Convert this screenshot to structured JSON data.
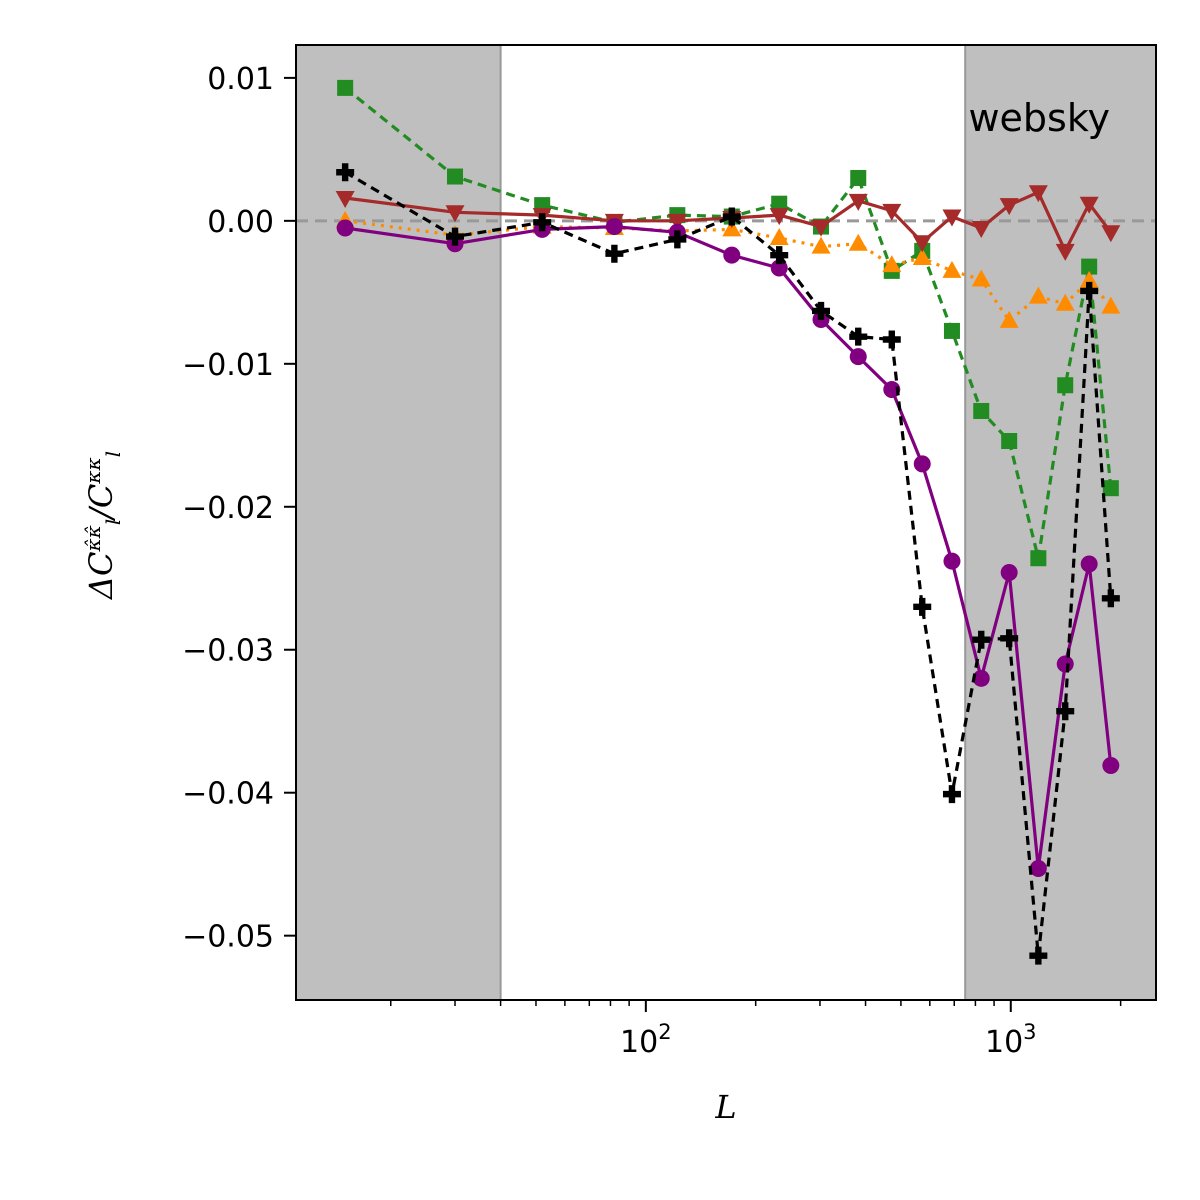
{
  "chart_data": {
    "type": "line",
    "xscale": "log",
    "xlim": [
      11,
      2500
    ],
    "ylim": [
      -0.0545,
      0.0123
    ],
    "xlabel": "L",
    "ylabel_parts": {
      "delta": "ΔC",
      "sup": "κ̂κ̂",
      "sub": "l",
      "slash": "/C",
      "sup2": "κκ",
      "sub2": "l"
    },
    "annotation": "websky",
    "x_tick_labels": [
      {
        "value": 100,
        "base": "10",
        "exp": "2"
      },
      {
        "value": 1000,
        "base": "10",
        "exp": "3"
      }
    ],
    "y_ticks": [
      0.01,
      0.0,
      -0.01,
      -0.02,
      -0.03,
      -0.04,
      -0.05
    ],
    "y_tick_labels": [
      "0.01",
      "0.00",
      "−0.01",
      "−0.02",
      "−0.03",
      "−0.04",
      "−0.05"
    ],
    "shaded_regions": [
      [
        11,
        40
      ],
      [
        750,
        2500
      ]
    ],
    "reference_line": 0,
    "x": [
      15,
      30,
      52,
      82,
      122,
      172,
      232,
      302,
      382,
      472,
      572,
      690,
      830,
      990,
      1190,
      1410,
      1640,
      1880
    ],
    "series": [
      {
        "color": "#228b22",
        "dash": "9,6",
        "marker": "square",
        "values": [
          0.0093,
          0.0031,
          0.0011,
          -0.0001,
          0.0004,
          0.0003,
          0.0012,
          -0.0004,
          0.003,
          -0.0035,
          -0.0021,
          -0.0077,
          -0.0133,
          -0.0154,
          -0.0236,
          -0.0115,
          -0.0032,
          -0.0187
        ]
      },
      {
        "color": "#ff8c00",
        "dash": "3,6",
        "marker": "triangle-up",
        "values": [
          0.0,
          -0.001,
          -0.0004,
          -0.0005,
          -0.0007,
          -0.0006,
          -0.0012,
          -0.0018,
          -0.0016,
          -0.0031,
          -0.0026,
          -0.0035,
          -0.0041,
          -0.007,
          -0.0053,
          -0.0058,
          -0.0042,
          -0.006
        ]
      },
      {
        "color": "#a52a2a",
        "dash": "",
        "marker": "triangle-down",
        "values": [
          0.0016,
          0.0006,
          0.0004,
          0.0,
          0.0,
          0.0002,
          0.0004,
          -0.0004,
          0.0014,
          0.0007,
          -0.0015,
          0.0003,
          -0.0005,
          0.0011,
          0.002,
          -0.0021,
          0.0012,
          -0.0008
        ]
      },
      {
        "color": "#800080",
        "dash": "",
        "marker": "circle",
        "values": [
          -0.0005,
          -0.0016,
          -0.0006,
          -0.0004,
          -0.0008,
          -0.0024,
          -0.0033,
          -0.0069,
          -0.0095,
          -0.0118,
          -0.017,
          -0.0238,
          -0.032,
          -0.0246,
          -0.0453,
          -0.031,
          -0.024,
          -0.0381
        ]
      },
      {
        "color": "#000000",
        "dash": "9,6",
        "marker": "plus",
        "values": [
          0.0034,
          -0.0011,
          -0.0001,
          -0.0023,
          -0.0013,
          0.0003,
          -0.0024,
          -0.0063,
          -0.0081,
          -0.0083,
          -0.027,
          -0.0401,
          -0.0293,
          -0.0292,
          -0.0514,
          -0.0343,
          -0.0049,
          -0.0264
        ]
      }
    ]
  }
}
